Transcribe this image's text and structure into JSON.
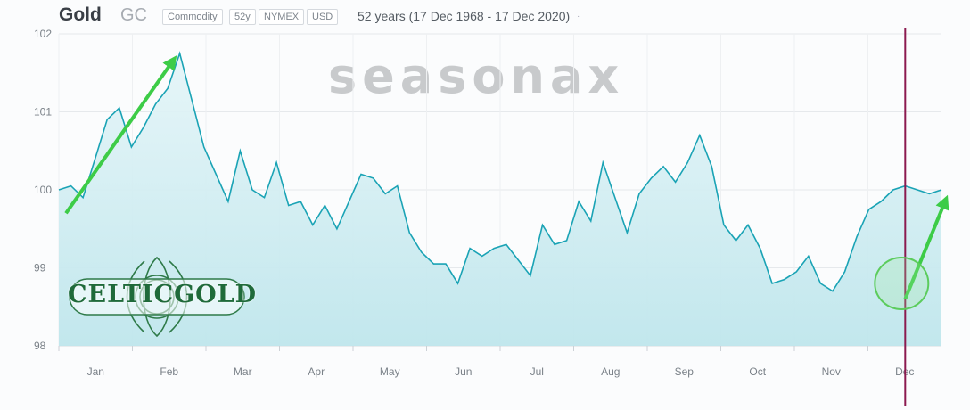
{
  "header": {
    "title": "Gold",
    "symbol": "GC",
    "tags": [
      "Commodity",
      "52y",
      "NYMEX",
      "USD"
    ],
    "range": "52 years (17 Dec 1968 - 17 Dec 2020)"
  },
  "watermark": "seasonax",
  "logo": {
    "text": "CELTICGOLD"
  },
  "colors": {
    "line": "#1aa3b5",
    "area": "#cfeef2",
    "marker": "#8b1a4f",
    "arrow": "#3dcc47",
    "circle": "#5ccc5c"
  },
  "chart_data": {
    "type": "area",
    "x_ticks": [
      "Jan",
      "Feb",
      "Mar",
      "Apr",
      "May",
      "Jun",
      "Jul",
      "Aug",
      "Sep",
      "Oct",
      "Nov",
      "Dec"
    ],
    "y_ticks": [
      98,
      99,
      100,
      101,
      102
    ],
    "ylim": [
      98,
      102
    ],
    "x": [
      "Jan 1",
      "Jan 6",
      "Jan 11",
      "Jan 16",
      "Jan 21",
      "Jan 26",
      "Jan 31",
      "Feb 5",
      "Feb 10",
      "Feb 15",
      "Feb 20",
      "Feb 25",
      "Mar 2",
      "Mar 7",
      "Mar 12",
      "Mar 17",
      "Mar 22",
      "Mar 27",
      "Apr 1",
      "Apr 6",
      "Apr 11",
      "Apr 16",
      "Apr 21",
      "Apr 26",
      "May 1",
      "May 6",
      "May 11",
      "May 16",
      "May 21",
      "May 26",
      "May 31",
      "Jun 5",
      "Jun 10",
      "Jun 15",
      "Jun 20",
      "Jun 25",
      "Jun 30",
      "Jul 5",
      "Jul 10",
      "Jul 15",
      "Jul 20",
      "Jul 25",
      "Jul 30",
      "Aug 4",
      "Aug 9",
      "Aug 14",
      "Aug 19",
      "Aug 24",
      "Aug 29",
      "Sep 3",
      "Sep 8",
      "Sep 13",
      "Sep 18",
      "Sep 23",
      "Sep 28",
      "Oct 3",
      "Oct 8",
      "Oct 13",
      "Oct 18",
      "Oct 23",
      "Oct 28",
      "Nov 2",
      "Nov 7",
      "Nov 12",
      "Nov 17",
      "Nov 22",
      "Nov 27",
      "Dec 2",
      "Dec 7",
      "Dec 12",
      "Dec 17",
      "Dec 22",
      "Dec 27",
      "Dec 31"
    ],
    "values": [
      100.0,
      100.05,
      99.9,
      100.4,
      100.9,
      101.05,
      100.55,
      100.8,
      101.1,
      101.3,
      101.75,
      101.15,
      100.55,
      100.2,
      99.85,
      100.5,
      100.0,
      99.9,
      100.35,
      99.8,
      99.85,
      99.55,
      99.8,
      99.5,
      99.85,
      100.2,
      100.15,
      99.95,
      100.05,
      99.45,
      99.2,
      99.05,
      99.05,
      98.8,
      99.25,
      99.15,
      99.25,
      99.3,
      99.1,
      98.9,
      99.55,
      99.3,
      99.35,
      99.85,
      99.6,
      100.35,
      99.9,
      99.45,
      99.95,
      100.15,
      100.3,
      100.1,
      100.35,
      100.7,
      100.3,
      99.55,
      99.35,
      99.55,
      99.25,
      98.8,
      98.85,
      98.95,
      99.15,
      98.8,
      98.7,
      98.95,
      99.4,
      99.75,
      99.85,
      100.0,
      100.05,
      100.0,
      99.95,
      100.0
    ],
    "marker_label": "17 Dec",
    "annotations": [
      "arrow Jan-Feb up",
      "circle mid-Dec",
      "arrow Dec up"
    ]
  }
}
